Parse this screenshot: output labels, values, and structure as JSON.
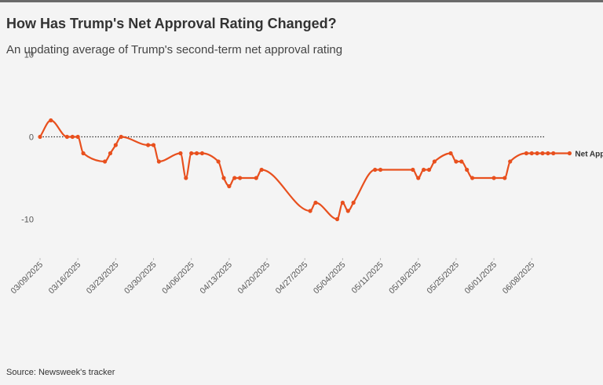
{
  "header": {
    "title": "How Has Trump's Net Approval Rating Changed?",
    "subtitle": "An updating average of Trump's second-term net approval rating"
  },
  "footer": {
    "source": "Source: Newsweek's tracker"
  },
  "colors": {
    "line": "#e8501e",
    "zero_line": "#333333",
    "axis_text": "#555555",
    "background": "#f4f4f4"
  },
  "chart_data": {
    "type": "line",
    "title": "How Has Trump's Net Approval Rating Changed?",
    "subtitle": "An updating average of Trump's second-term net approval rating",
    "xlabel": "",
    "ylabel": "",
    "ylim": [
      -15,
      13
    ],
    "y_ticks": [
      10,
      0,
      -10
    ],
    "x_start": "2025-03-09",
    "x_end": "2025-06-10",
    "x_ticks": [
      "03/09/2025",
      "03/16/2025",
      "03/23/2025",
      "03/30/2025",
      "04/06/2025",
      "04/13/2025",
      "04/20/2025",
      "04/27/2025",
      "05/04/2025",
      "05/11/2025",
      "05/18/2025",
      "05/25/2025",
      "06/01/2025",
      "06/08/2025"
    ],
    "reference_line": {
      "y": 0,
      "style": "dotted"
    },
    "grid": false,
    "series": [
      {
        "name": "Net Approval",
        "label_position": "end",
        "points": [
          [
            "2025-03-09",
            0
          ],
          [
            "2025-03-11",
            2
          ],
          [
            "2025-03-14",
            0
          ],
          [
            "2025-03-15",
            0
          ],
          [
            "2025-03-16",
            0
          ],
          [
            "2025-03-17",
            -2
          ],
          [
            "2025-03-21",
            -3
          ],
          [
            "2025-03-22",
            -2
          ],
          [
            "2025-03-23",
            -1
          ],
          [
            "2025-03-24",
            0
          ],
          [
            "2025-03-29",
            -1
          ],
          [
            "2025-03-30",
            -1
          ],
          [
            "2025-03-31",
            -3
          ],
          [
            "2025-04-04",
            -2
          ],
          [
            "2025-04-05",
            -5
          ],
          [
            "2025-04-06",
            -2
          ],
          [
            "2025-04-07",
            -2
          ],
          [
            "2025-04-08",
            -2
          ],
          [
            "2025-04-11",
            -3
          ],
          [
            "2025-04-12",
            -5
          ],
          [
            "2025-04-13",
            -6
          ],
          [
            "2025-04-14",
            -5
          ],
          [
            "2025-04-15",
            -5
          ],
          [
            "2025-04-18",
            -5
          ],
          [
            "2025-04-19",
            -4
          ],
          [
            "2025-04-28",
            -9
          ],
          [
            "2025-04-29",
            -8
          ],
          [
            "2025-05-03",
            -10
          ],
          [
            "2025-05-04",
            -8
          ],
          [
            "2025-05-05",
            -9
          ],
          [
            "2025-05-06",
            -8
          ],
          [
            "2025-05-10",
            -4
          ],
          [
            "2025-05-11",
            -4
          ],
          [
            "2025-05-17",
            -4
          ],
          [
            "2025-05-18",
            -5
          ],
          [
            "2025-05-19",
            -4
          ],
          [
            "2025-05-20",
            -4
          ],
          [
            "2025-05-21",
            -3
          ],
          [
            "2025-05-24",
            -2
          ],
          [
            "2025-05-25",
            -3
          ],
          [
            "2025-05-26",
            -3
          ],
          [
            "2025-05-27",
            -4
          ],
          [
            "2025-05-28",
            -5
          ],
          [
            "2025-06-01",
            -5
          ],
          [
            "2025-06-03",
            -5
          ],
          [
            "2025-06-04",
            -3
          ],
          [
            "2025-06-07",
            -2
          ],
          [
            "2025-06-08",
            -2
          ],
          [
            "2025-06-09",
            -2
          ],
          [
            "2025-06-10",
            -2
          ],
          [
            "2025-06-11",
            -2
          ],
          [
            "2025-06-12",
            -2
          ],
          [
            "2025-06-15",
            -2
          ]
        ]
      }
    ]
  }
}
